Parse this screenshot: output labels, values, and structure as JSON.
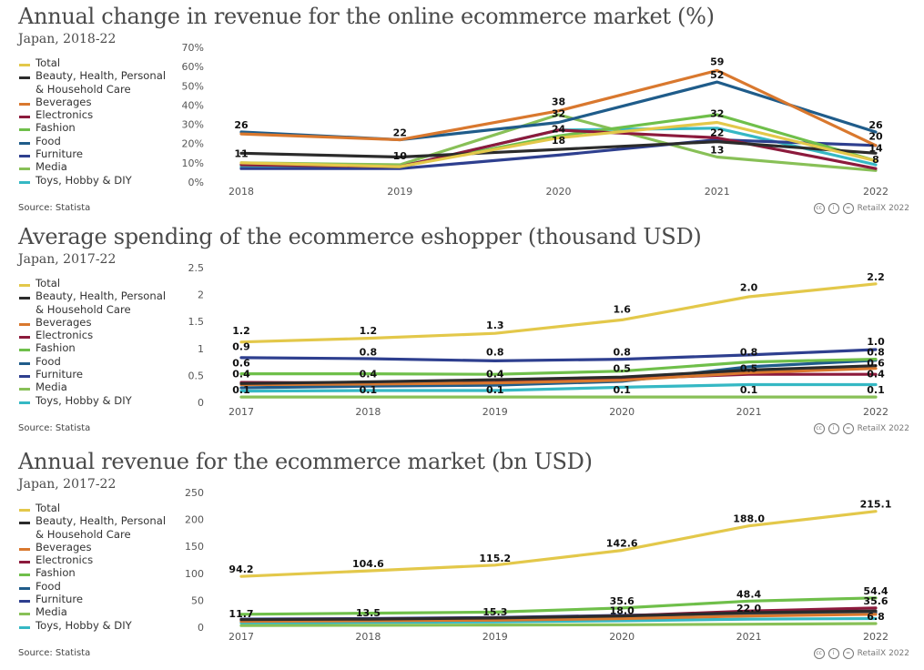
{
  "panels": [
    {
      "title": "Annual change in revenue for the online ecommerce market (%)",
      "subtitle": "Japan, 2018-22",
      "source": "Source: Statista",
      "credit": "RetailX 2022"
    },
    {
      "title": "Average spending of the ecommerce eshopper (thousand USD)",
      "subtitle": "Japan, 2017-22",
      "source": "Source: Statista",
      "credit": "RetailX 2022"
    },
    {
      "title": "Annual revenue for the ecommerce market (bn USD)",
      "subtitle": "Japan, 2017-22",
      "source": "Source: Statista",
      "credit": "RetailX 2022"
    }
  ],
  "legend": [
    {
      "label": "Total",
      "color": "#e3c84a"
    },
    {
      "label": "Beauty, Health, Personal & Household Care",
      "color": "#2b2b2b"
    },
    {
      "label": "Beverages",
      "color": "#d9782e"
    },
    {
      "label": "Electronics",
      "color": "#8c1a3c"
    },
    {
      "label": "Fashion",
      "color": "#6fbf4a"
    },
    {
      "label": "Food",
      "color": "#1f5c8a"
    },
    {
      "label": "Furniture",
      "color": "#2e3f8f"
    },
    {
      "label": "Media",
      "color": "#88c057"
    },
    {
      "label": "Toys, Hobby & DIY",
      "color": "#35b8c4"
    }
  ],
  "chart_data": [
    {
      "type": "line",
      "x": [
        "2018",
        "2019",
        "2020",
        "2021",
        "2022"
      ],
      "ylim": [
        0,
        70
      ],
      "yticks": [
        "0%",
        "10%",
        "20%",
        "30%",
        "40%",
        "50%",
        "60%",
        "70%"
      ],
      "ytick_values": [
        0,
        10,
        20,
        30,
        40,
        50,
        60,
        70
      ],
      "series": [
        {
          "name": "Total",
          "color": "#e3c84a",
          "values": [
            10,
            8,
            23,
            31,
            11
          ]
        },
        {
          "name": "Beauty, Health, Personal & Household Care",
          "color": "#2b2b2b",
          "values": [
            15,
            13,
            17,
            21,
            15
          ]
        },
        {
          "name": "Beverages",
          "color": "#d9782e",
          "values": [
            25,
            22,
            37,
            58,
            19
          ]
        },
        {
          "name": "Electronics",
          "color": "#8c1a3c",
          "values": [
            9,
            8,
            27,
            23,
            7
          ]
        },
        {
          "name": "Fashion",
          "color": "#6fbf4a",
          "values": [
            9,
            8,
            24,
            35,
            11
          ]
        },
        {
          "name": "Food",
          "color": "#1f5c8a",
          "values": [
            26,
            22,
            31,
            52,
            26
          ]
        },
        {
          "name": "Furniture",
          "color": "#2e3f8f",
          "values": [
            7,
            7,
            14,
            22,
            19
          ]
        },
        {
          "name": "Media",
          "color": "#88c057",
          "values": [
            10,
            9,
            35,
            13,
            6
          ]
        },
        {
          "name": "Toys, Hobby & DIY",
          "color": "#35b8c4",
          "values": [
            8,
            8,
            27,
            28,
            9
          ]
        }
      ],
      "data_labels": [
        {
          "x": "2018",
          "y": 26,
          "text": "26"
        },
        {
          "x": "2018",
          "y": 11,
          "text": "11"
        },
        {
          "x": "2019",
          "y": 22,
          "text": "22"
        },
        {
          "x": "2019",
          "y": 10,
          "text": "10"
        },
        {
          "x": "2020",
          "y": 38,
          "text": "38"
        },
        {
          "x": "2020",
          "y": 32,
          "text": "32"
        },
        {
          "x": "2020",
          "y": 24,
          "text": "24"
        },
        {
          "x": "2020",
          "y": 18,
          "text": "18"
        },
        {
          "x": "2021",
          "y": 59,
          "text": "59"
        },
        {
          "x": "2021",
          "y": 52,
          "text": "52"
        },
        {
          "x": "2021",
          "y": 32,
          "text": "32"
        },
        {
          "x": "2021",
          "y": 22,
          "text": "22"
        },
        {
          "x": "2021",
          "y": 13,
          "text": "13"
        },
        {
          "x": "2022",
          "y": 26,
          "text": "26"
        },
        {
          "x": "2022",
          "y": 20,
          "text": "20"
        },
        {
          "x": "2022",
          "y": 14,
          "text": "14"
        },
        {
          "x": "2022",
          "y": 8,
          "text": "8"
        }
      ]
    },
    {
      "type": "line",
      "x": [
        "2017",
        "2018",
        "2019",
        "2020",
        "2021",
        "2022"
      ],
      "ylim": [
        0,
        2.5
      ],
      "yticks": [
        "0",
        "0.5",
        "1",
        "1.5",
        "2",
        "2.5"
      ],
      "ytick_values": [
        0,
        0.5,
        1,
        1.5,
        2,
        2.5
      ],
      "series": [
        {
          "name": "Total",
          "color": "#e3c84a",
          "values": [
            1.12,
            1.19,
            1.28,
            1.53,
            1.96,
            2.2
          ]
        },
        {
          "name": "Beauty, Health, Personal & Household Care",
          "color": "#2b2b2b",
          "values": [
            0.35,
            0.38,
            0.42,
            0.47,
            0.6,
            0.68
          ]
        },
        {
          "name": "Beverages",
          "color": "#d9782e",
          "values": [
            0.33,
            0.34,
            0.36,
            0.41,
            0.55,
            0.63
          ]
        },
        {
          "name": "Electronics",
          "color": "#8c1a3c",
          "values": [
            0.37,
            0.36,
            0.37,
            0.44,
            0.52,
            0.52
          ]
        },
        {
          "name": "Fashion",
          "color": "#6fbf4a",
          "values": [
            0.53,
            0.53,
            0.52,
            0.58,
            0.75,
            0.8
          ]
        },
        {
          "name": "Food",
          "color": "#1f5c8a",
          "values": [
            0.27,
            0.3,
            0.32,
            0.39,
            0.66,
            0.78
          ]
        },
        {
          "name": "Furniture",
          "color": "#2e3f8f",
          "values": [
            0.83,
            0.81,
            0.77,
            0.8,
            0.88,
            0.98
          ]
        },
        {
          "name": "Media",
          "color": "#88c057",
          "values": [
            0.1,
            0.1,
            0.1,
            0.1,
            0.1,
            0.1
          ]
        },
        {
          "name": "Toys, Hobby & DIY",
          "color": "#35b8c4",
          "values": [
            0.21,
            0.22,
            0.22,
            0.28,
            0.33,
            0.33
          ]
        }
      ],
      "data_labels": [
        {
          "x": "2017",
          "y": 1.2,
          "text": "1.2"
        },
        {
          "x": "2017",
          "y": 0.9,
          "text": "0.9"
        },
        {
          "x": "2017",
          "y": 0.6,
          "text": "0.6"
        },
        {
          "x": "2017",
          "y": 0.4,
          "text": "0.4"
        },
        {
          "x": "2017",
          "y": 0.1,
          "text": "0.1"
        },
        {
          "x": "2018",
          "y": 1.2,
          "text": "1.2"
        },
        {
          "x": "2018",
          "y": 0.8,
          "text": "0.8"
        },
        {
          "x": "2018",
          "y": 0.4,
          "text": "0.4"
        },
        {
          "x": "2018",
          "y": 0.1,
          "text": "0.1"
        },
        {
          "x": "2019",
          "y": 1.3,
          "text": "1.3"
        },
        {
          "x": "2019",
          "y": 0.8,
          "text": "0.8"
        },
        {
          "x": "2019",
          "y": 0.4,
          "text": "0.4"
        },
        {
          "x": "2019",
          "y": 0.1,
          "text": "0.1"
        },
        {
          "x": "2020",
          "y": 1.6,
          "text": "1.6"
        },
        {
          "x": "2020",
          "y": 0.8,
          "text": "0.8"
        },
        {
          "x": "2020",
          "y": 0.5,
          "text": "0.5"
        },
        {
          "x": "2020",
          "y": 0.1,
          "text": "0.1"
        },
        {
          "x": "2021",
          "y": 2.0,
          "text": "2.0"
        },
        {
          "x": "2021",
          "y": 0.8,
          "text": "0.8"
        },
        {
          "x": "2021",
          "y": 0.5,
          "text": "0.5"
        },
        {
          "x": "2021",
          "y": 0.1,
          "text": "0.1"
        },
        {
          "x": "2022",
          "y": 2.2,
          "text": "2.2"
        },
        {
          "x": "2022",
          "y": 1.0,
          "text": "1.0"
        },
        {
          "x": "2022",
          "y": 0.8,
          "text": "0.8"
        },
        {
          "x": "2022",
          "y": 0.6,
          "text": "0.6"
        },
        {
          "x": "2022",
          "y": 0.4,
          "text": "0.4"
        },
        {
          "x": "2022",
          "y": 0.1,
          "text": "0.1"
        }
      ]
    },
    {
      "type": "line",
      "x": [
        "2017",
        "2018",
        "2019",
        "2020",
        "2021",
        "2022"
      ],
      "ylim": [
        0,
        250
      ],
      "yticks": [
        "0",
        "50",
        "100",
        "150",
        "200",
        "250"
      ],
      "ytick_values": [
        0,
        50,
        100,
        150,
        200,
        250
      ],
      "series": [
        {
          "name": "Total",
          "color": "#e3c84a",
          "values": [
            94.2,
            104.6,
            115.2,
            142.6,
            188.0,
            215.1
          ]
        },
        {
          "name": "Beauty, Health, Personal & Household Care",
          "color": "#2b2b2b",
          "values": [
            14,
            15,
            17,
            21,
            27,
            30
          ]
        },
        {
          "name": "Beverages",
          "color": "#d9782e",
          "values": [
            11,
            12,
            13,
            16,
            21,
            24
          ]
        },
        {
          "name": "Electronics",
          "color": "#8c1a3c",
          "values": [
            14,
            15,
            17,
            21,
            30,
            35.6
          ]
        },
        {
          "name": "Fashion",
          "color": "#6fbf4a",
          "values": [
            24,
            26,
            28,
            35.6,
            48.4,
            54.4
          ]
        },
        {
          "name": "Food",
          "color": "#1f5c8a",
          "values": [
            11.7,
            13.5,
            15.3,
            18.0,
            22.0,
            25.6
          ]
        },
        {
          "name": "Furniture",
          "color": "#2e3f8f",
          "values": [
            15,
            16,
            18,
            22,
            26,
            28
          ]
        },
        {
          "name": "Media",
          "color": "#88c057",
          "values": [
            3,
            3.5,
            4,
            4.5,
            5.5,
            6.8
          ]
        },
        {
          "name": "Toys, Hobby & DIY",
          "color": "#35b8c4",
          "values": [
            8,
            9,
            10,
            12,
            15,
            16
          ]
        }
      ],
      "data_labels": [
        {
          "x": "2017",
          "y": 94.2,
          "text": "94.2"
        },
        {
          "x": "2017",
          "y": 11.7,
          "text": "11.7"
        },
        {
          "x": "2018",
          "y": 104.6,
          "text": "104.6"
        },
        {
          "x": "2018",
          "y": 13.5,
          "text": "13.5"
        },
        {
          "x": "2019",
          "y": 115.2,
          "text": "115.2"
        },
        {
          "x": "2019",
          "y": 15.3,
          "text": "15.3"
        },
        {
          "x": "2020",
          "y": 142.6,
          "text": "142.6"
        },
        {
          "x": "2020",
          "y": 35.6,
          "text": "35.6"
        },
        {
          "x": "2020",
          "y": 18.0,
          "text": "18.0"
        },
        {
          "x": "2021",
          "y": 188.0,
          "text": "188.0"
        },
        {
          "x": "2021",
          "y": 48.4,
          "text": "48.4"
        },
        {
          "x": "2021",
          "y": 22.0,
          "text": "22.0"
        },
        {
          "x": "2022",
          "y": 215.1,
          "text": "215.1"
        },
        {
          "x": "2022",
          "y": 54.4,
          "text": "54.4"
        },
        {
          "x": "2022",
          "y": 35.6,
          "text": "35.6"
        },
        {
          "x": "2022",
          "y": 6.8,
          "text": "6.8"
        }
      ]
    }
  ]
}
